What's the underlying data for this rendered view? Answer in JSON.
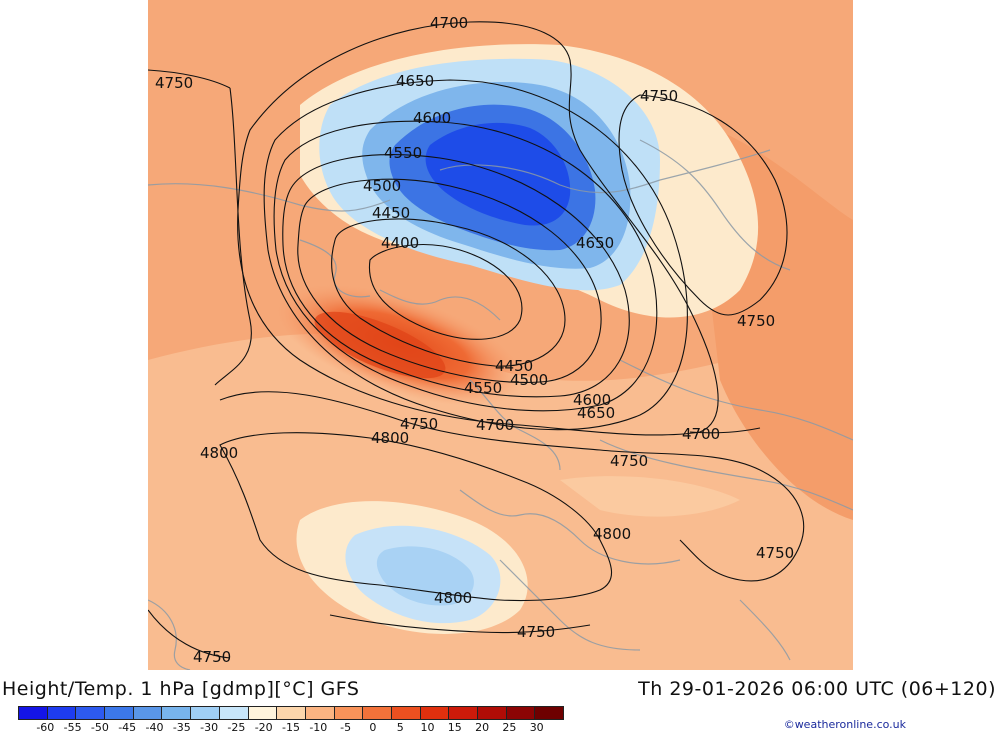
{
  "title_left": "Height/Temp. 1 hPa [gdmp][°C] GFS",
  "title_right": "Th 29-01-2026 06:00 UTC (06+120)",
  "credit": "©weatheronline.co.uk",
  "legend": {
    "ticks": [
      "-60",
      "-55",
      "-50",
      "-45",
      "-40",
      "-35",
      "-30",
      "-25",
      "-20",
      "-15",
      "-10",
      "-5",
      "0",
      "5",
      "10",
      "15",
      "20",
      "25",
      "30"
    ],
    "colors": [
      "#1414e6",
      "#1e3cf0",
      "#2d5aef",
      "#3c78ea",
      "#5a96e8",
      "#78b4ec",
      "#a0cff5",
      "#c8e6fa",
      "#fff4dc",
      "#fcd6ac",
      "#fbb482",
      "#f8935a",
      "#f2723a",
      "#ec5020",
      "#e0300e",
      "#cc1a0a",
      "#b00c06",
      "#8c0404",
      "#6e0000"
    ]
  },
  "contour_labels": [
    {
      "id": "c1",
      "text": "4700"
    },
    {
      "id": "c2",
      "text": "4750"
    },
    {
      "id": "c3",
      "text": "4650"
    },
    {
      "id": "c4",
      "text": "4750"
    },
    {
      "id": "c5",
      "text": "4600"
    },
    {
      "id": "c6",
      "text": "4550"
    },
    {
      "id": "c7",
      "text": "4500"
    },
    {
      "id": "c8",
      "text": "4450"
    },
    {
      "id": "c9",
      "text": "4400"
    },
    {
      "id": "c10",
      "text": "4650"
    },
    {
      "id": "c11",
      "text": "4750"
    },
    {
      "id": "c12",
      "text": "4450"
    },
    {
      "id": "c13",
      "text": "4500"
    },
    {
      "id": "c14",
      "text": "4550"
    },
    {
      "id": "c15",
      "text": "4600"
    },
    {
      "id": "c16",
      "text": "4650"
    },
    {
      "id": "c17",
      "text": "4750"
    },
    {
      "id": "c18",
      "text": "4700"
    },
    {
      "id": "c19",
      "text": "4700"
    },
    {
      "id": "c20",
      "text": "4800"
    },
    {
      "id": "c21",
      "text": "4800"
    },
    {
      "id": "c22",
      "text": "4750"
    },
    {
      "id": "c23",
      "text": "4800"
    },
    {
      "id": "c24",
      "text": "4750"
    },
    {
      "id": "c25",
      "text": "4800"
    },
    {
      "id": "c26",
      "text": "4750"
    },
    {
      "id": "c27",
      "text": "4750"
    }
  ]
}
